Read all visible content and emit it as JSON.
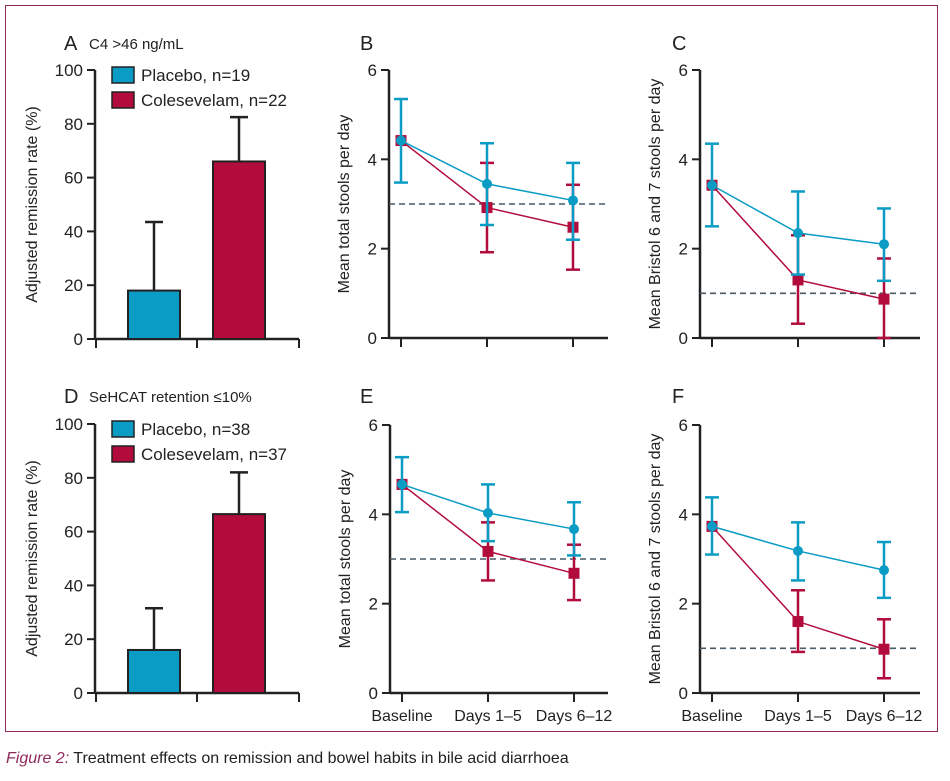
{
  "caption": {
    "label": "Figure 2:",
    "text": " Treatment effects on remission and bowel habits in bile acid diarrhoea"
  },
  "colors": {
    "placebo": "#0a9cc4",
    "colesevelam": "#b10c3c",
    "frame": "#8e2a5c",
    "reference_line": "#4a5a66"
  },
  "chart_data": [
    {
      "panel": "A",
      "title": "C4 >46 ng/mL",
      "type": "bar",
      "ylabel": "Adjusted remission rate (%)",
      "ylim": [
        0,
        100
      ],
      "yticks": [
        0,
        20,
        40,
        60,
        80,
        100
      ],
      "legend": "top-left",
      "series": [
        {
          "name": "Placebo, n=19",
          "value": 18,
          "upper_error": 43.5
        },
        {
          "name": "Colesevelam, n=22",
          "value": 66,
          "upper_error": 82.5
        }
      ]
    },
    {
      "panel": "B",
      "title": "",
      "type": "line",
      "ylabel": "Mean total stools per day",
      "ylim": [
        0,
        6
      ],
      "yticks": [
        0,
        2,
        4,
        6
      ],
      "categories": [
        "Baseline",
        "Days 1–5",
        "Days 6–12"
      ],
      "show_xlabels": false,
      "reference_line": 3,
      "series": [
        {
          "group": "placebo",
          "values": [
            4.42,
            3.45,
            3.08
          ],
          "upper": [
            5.35,
            4.36,
            3.92
          ],
          "lower": [
            3.48,
            2.53,
            2.2
          ]
        },
        {
          "group": "colesevelam",
          "values": [
            4.42,
            2.92,
            2.48
          ],
          "upper": [
            4.42,
            3.92,
            3.43
          ],
          "lower": [
            4.42,
            1.92,
            1.53
          ]
        }
      ]
    },
    {
      "panel": "C",
      "title": "",
      "type": "line",
      "ylabel": "Mean Bristol 6 and 7 stools per day",
      "ylim": [
        0,
        6
      ],
      "yticks": [
        0,
        2,
        4,
        6
      ],
      "categories": [
        "Baseline",
        "Days 1–5",
        "Days 6–12"
      ],
      "show_xlabels": false,
      "reference_line": 1,
      "series": [
        {
          "group": "placebo",
          "values": [
            3.42,
            2.35,
            2.1
          ],
          "upper": [
            4.35,
            3.28,
            2.9
          ],
          "lower": [
            2.5,
            1.42,
            1.28
          ]
        },
        {
          "group": "colesevelam",
          "values": [
            3.42,
            1.3,
            0.87
          ],
          "upper": [
            3.42,
            2.3,
            1.78
          ],
          "lower": [
            3.42,
            0.32,
            0.0
          ]
        }
      ]
    },
    {
      "panel": "D",
      "title": "SeHCAT retention ≤10%",
      "type": "bar",
      "ylabel": "Adjusted remission rate (%)",
      "ylim": [
        0,
        100
      ],
      "yticks": [
        0,
        20,
        40,
        60,
        80,
        100
      ],
      "legend": "top-left",
      "series": [
        {
          "name": "Placebo, n=38",
          "value": 16,
          "upper_error": 31.5
        },
        {
          "name": "Colesevelam, n=37",
          "value": 66.5,
          "upper_error": 82
        }
      ]
    },
    {
      "panel": "E",
      "title": "",
      "type": "line",
      "ylabel": "Mean total stools per day",
      "ylim": [
        0,
        6
      ],
      "yticks": [
        0,
        2,
        4,
        6
      ],
      "categories": [
        "Baseline",
        "Days 1–5",
        "Days 6–12"
      ],
      "show_xlabels": true,
      "reference_line": 3,
      "series": [
        {
          "group": "placebo",
          "values": [
            4.67,
            4.03,
            3.67
          ],
          "upper": [
            5.28,
            4.67,
            4.27
          ],
          "lower": [
            4.05,
            3.4,
            3.08
          ]
        },
        {
          "group": "colesevelam",
          "values": [
            4.67,
            3.17,
            2.68
          ],
          "upper": [
            4.67,
            3.82,
            3.32
          ],
          "lower": [
            4.67,
            2.52,
            2.08
          ]
        }
      ]
    },
    {
      "panel": "F",
      "title": "",
      "type": "line",
      "ylabel": "Mean Bristol 6 and 7 stools per day",
      "ylim": [
        0,
        6
      ],
      "yticks": [
        0,
        2,
        4,
        6
      ],
      "categories": [
        "Baseline",
        "Days 1–5",
        "Days 6–12"
      ],
      "show_xlabels": true,
      "reference_line": 1,
      "series": [
        {
          "group": "placebo",
          "values": [
            3.73,
            3.18,
            2.75
          ],
          "upper": [
            4.38,
            3.82,
            3.38
          ],
          "lower": [
            3.1,
            2.52,
            2.13
          ]
        },
        {
          "group": "colesevelam",
          "values": [
            3.73,
            1.6,
            0.98
          ],
          "upper": [
            3.73,
            2.3,
            1.65
          ],
          "lower": [
            3.73,
            0.92,
            0.33
          ]
        }
      ]
    }
  ]
}
